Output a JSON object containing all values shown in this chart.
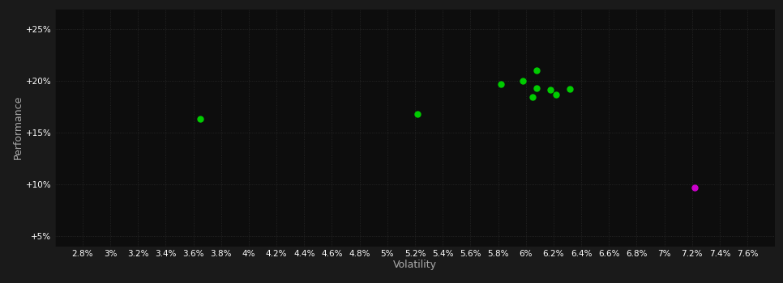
{
  "background_color": "#1a1a1a",
  "plot_bg_color": "#0d0d0d",
  "xlabel": "Volatility",
  "ylabel": "Performance",
  "xlim": [
    0.026,
    0.078
  ],
  "ylim": [
    0.04,
    0.27
  ],
  "ytick_values": [
    0.05,
    0.1,
    0.15,
    0.2,
    0.25
  ],
  "ytick_labels": [
    "+5%",
    "+10%",
    "+15%",
    "+20%",
    "+25%"
  ],
  "xtick_values": [
    0.028,
    0.03,
    0.032,
    0.034,
    0.036,
    0.038,
    0.04,
    0.042,
    0.044,
    0.046,
    0.048,
    0.05,
    0.052,
    0.054,
    0.056,
    0.058,
    0.06,
    0.062,
    0.064,
    0.066,
    0.068,
    0.07,
    0.072,
    0.074,
    0.076
  ],
  "xtick_labels": [
    "2.8%",
    "3%",
    "3.2%",
    "3.4%",
    "3.6%",
    "3.8%",
    "4%",
    "4.2%",
    "4.4%",
    "4.6%",
    "4.8%",
    "5%",
    "5.2%",
    "5.4%",
    "5.6%",
    "5.8%",
    "6%",
    "6.2%",
    "6.4%",
    "6.6%",
    "6.8%",
    "7%",
    "7.2%",
    "7.4%",
    "7.6%"
  ],
  "green_points": [
    [
      0.0365,
      0.163
    ],
    [
      0.0522,
      0.168
    ],
    [
      0.0582,
      0.197
    ],
    [
      0.0598,
      0.2
    ],
    [
      0.0608,
      0.21
    ],
    [
      0.0608,
      0.193
    ],
    [
      0.0618,
      0.191
    ],
    [
      0.0622,
      0.187
    ],
    [
      0.0632,
      0.192
    ],
    [
      0.0605,
      0.184
    ]
  ],
  "magenta_points": [
    [
      0.0722,
      0.097
    ]
  ],
  "green_color": "#00cc00",
  "magenta_color": "#cc00cc",
  "tick_label_color": "#ffffff",
  "axis_label_color": "#aaaaaa",
  "grid_line_color": "#2a2a2a",
  "font_size_ticks": 7.5,
  "font_size_labels": 9,
  "marker_size": 5
}
